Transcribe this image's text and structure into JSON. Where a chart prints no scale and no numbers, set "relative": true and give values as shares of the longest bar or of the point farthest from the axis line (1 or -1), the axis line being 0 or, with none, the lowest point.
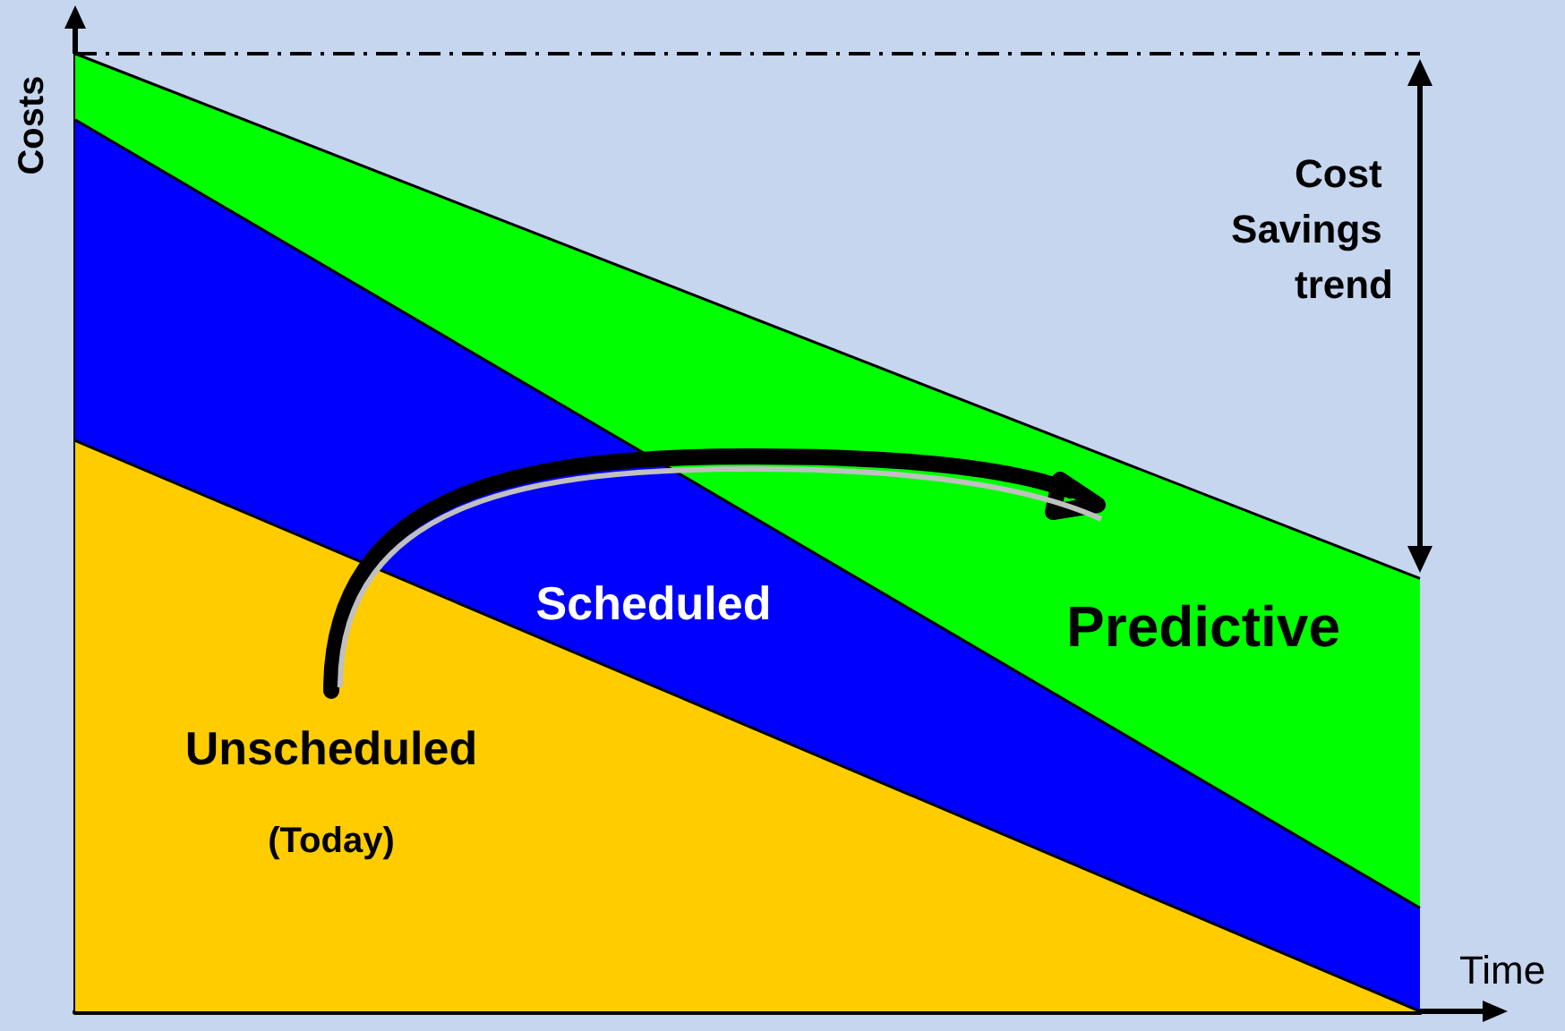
{
  "chart_data": {
    "type": "area",
    "relative": true,
    "stacked": true,
    "xlabel": "Time",
    "ylabel": "Costs",
    "categories": [
      null,
      null
    ],
    "series": [
      {
        "name": "Unscheduled",
        "color": "#ffcc00",
        "values": [
          0.596,
          0
        ]
      },
      {
        "name": "Scheduled",
        "color": "#0000ff",
        "values": [
          0.335,
          0.108
        ]
      },
      {
        "name": "Predictive",
        "color": "#00ff00",
        "values": [
          0.069,
          0.344
        ]
      }
    ],
    "ref_lines": [
      {
        "axis": "y",
        "value": 1,
        "line_style": "dashed",
        "color": "#000000"
      }
    ],
    "annotations": [
      "(Today)",
      "Cost Savings trend"
    ],
    "grid": false,
    "legend": false
  }
}
